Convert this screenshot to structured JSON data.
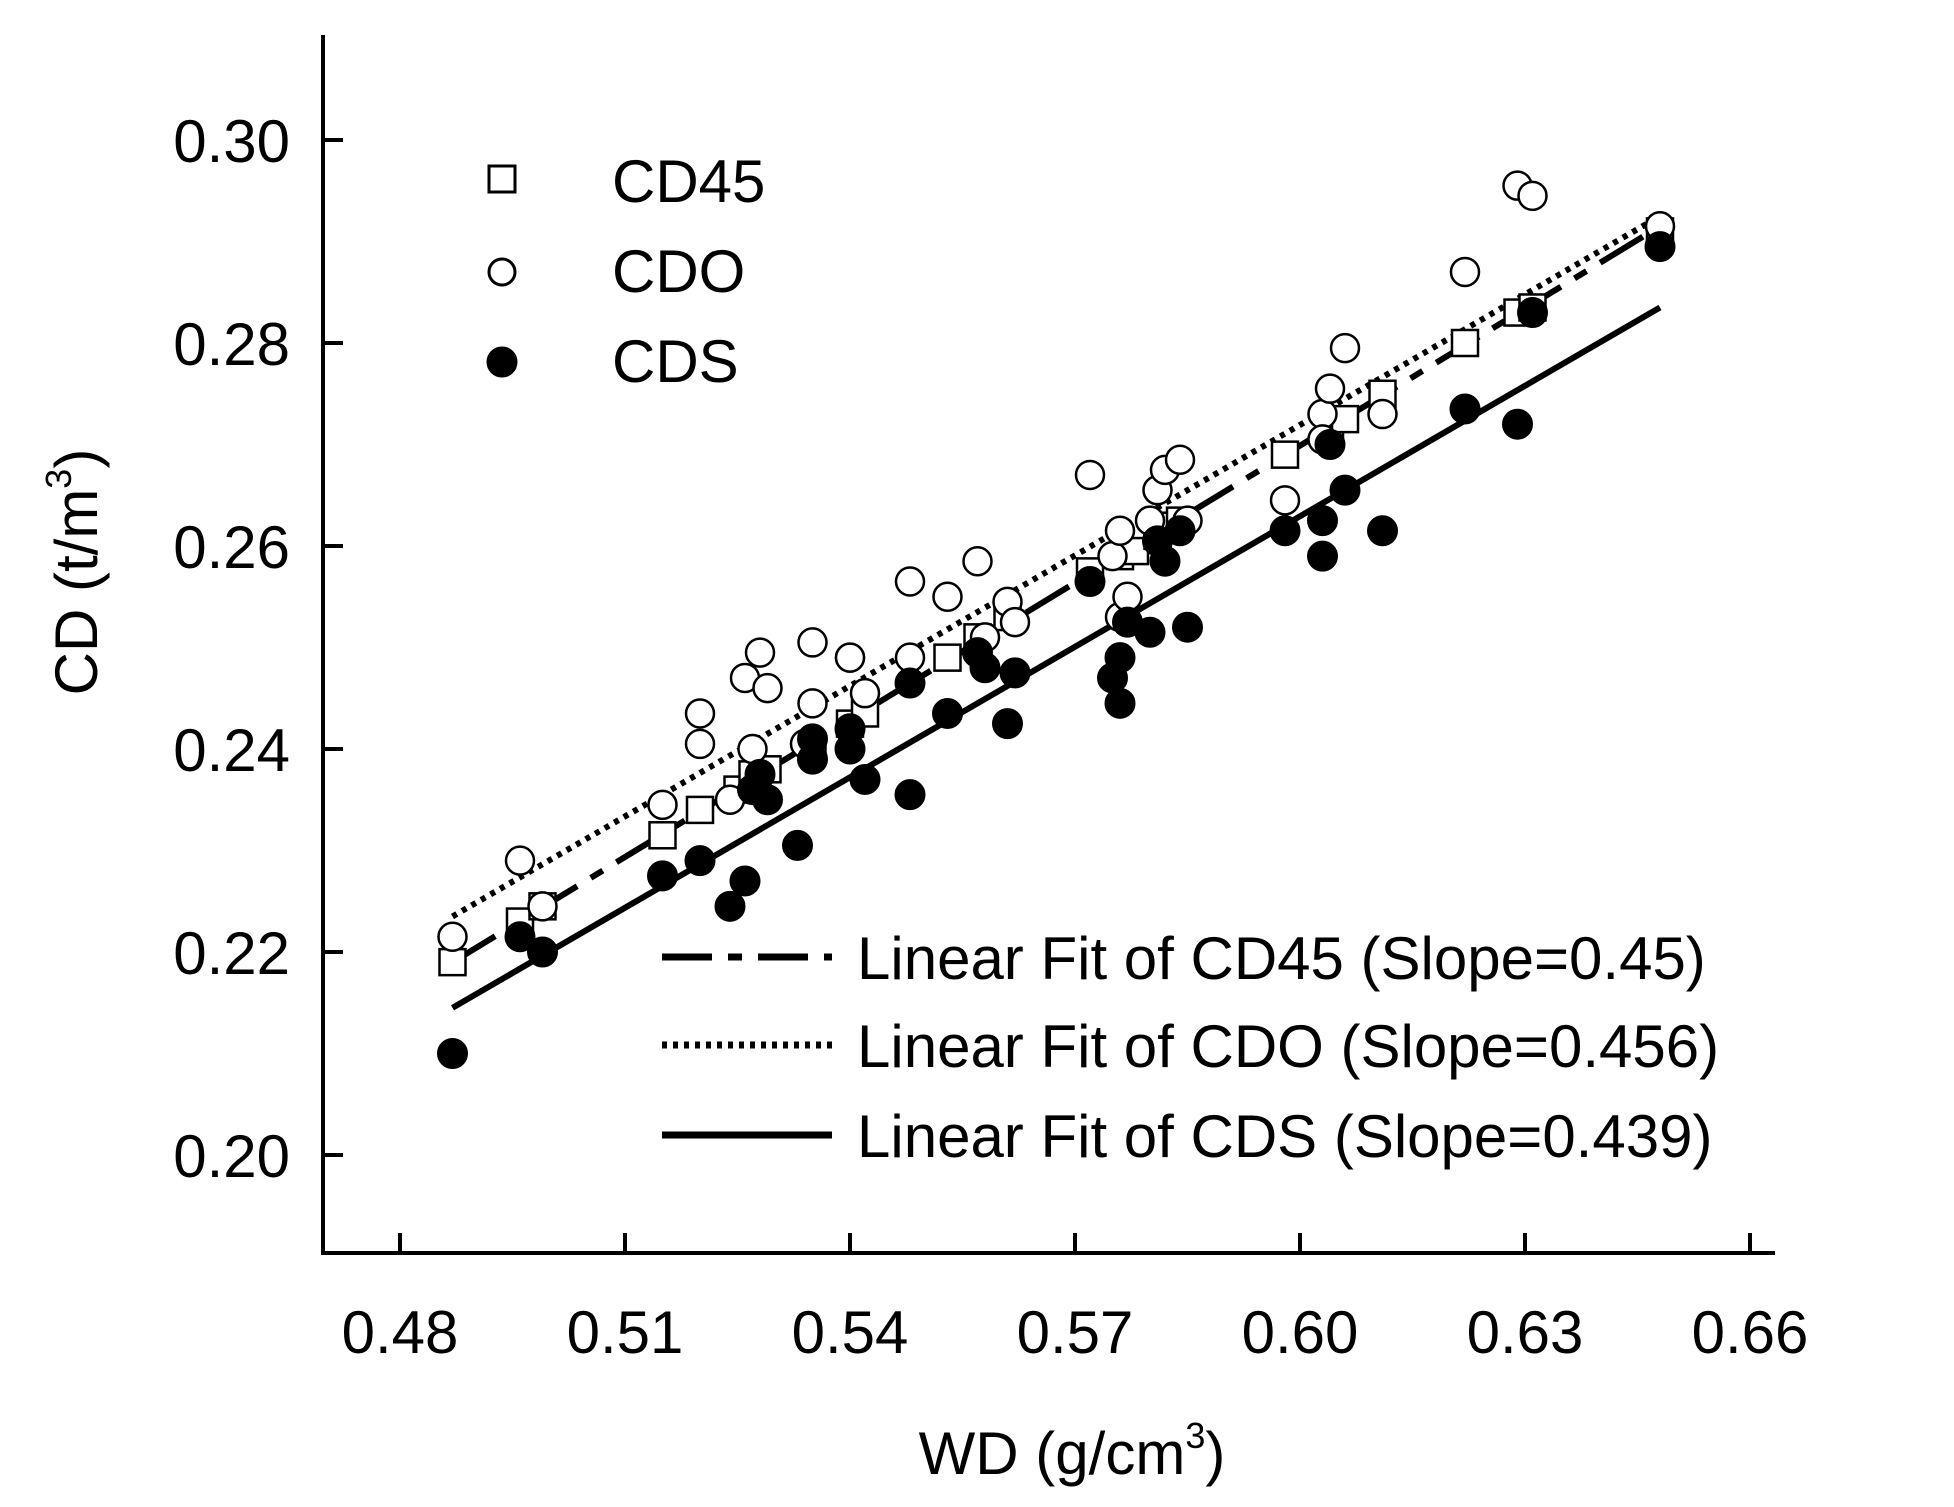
{
  "chart_data": {
    "type": "scatter",
    "xlabel": "WD (g/cm",
    "xlabel_sup": "3",
    "xlabel_end": ")",
    "ylabel": "CD (t/m",
    "ylabel_sup": "3",
    "ylabel_end": ")",
    "xlim": [
      0.47,
      0.66
    ],
    "ylim": [
      0.19,
      0.31
    ],
    "xticks": [
      0.48,
      0.51,
      0.54,
      0.57,
      0.6,
      0.63,
      0.66
    ],
    "xtick_labels": [
      "0.48",
      "0.51",
      "0.54",
      "0.57",
      "0.60",
      "0.63",
      "0.66"
    ],
    "yticks": [
      0.2,
      0.22,
      0.24,
      0.26,
      0.28,
      0.3
    ],
    "ytick_labels": [
      "0.20",
      "0.22",
      "0.24",
      "0.26",
      "0.28",
      "0.30"
    ],
    "legend": {
      "placement": "top-left",
      "entries": [
        {
          "name": "CD45",
          "marker": "square-open"
        },
        {
          "name": "CDO",
          "marker": "circle-open"
        },
        {
          "name": "CDS",
          "marker": "circle-filled"
        }
      ]
    },
    "fit_legend": {
      "placement": "bottom-right",
      "entries": [
        {
          "label": "Linear Fit of CD45 (Slope=0.45)",
          "style": "dash-dot"
        },
        {
          "label": "Linear Fit of CDO (Slope=0.456)",
          "style": "dotted"
        },
        {
          "label": "Linear Fit of CDS (Slope=0.439)",
          "style": "solid"
        }
      ]
    },
    "fits": [
      {
        "name": "CD45",
        "style": "dash-dot",
        "x": [
          0.487,
          0.648
        ],
        "y": [
          0.219,
          0.2915
        ]
      },
      {
        "name": "CDO",
        "style": "dotted",
        "x": [
          0.487,
          0.648
        ],
        "y": [
          0.2235,
          0.2925
        ]
      },
      {
        "name": "CDS",
        "style": "solid",
        "x": [
          0.487,
          0.648
        ],
        "y": [
          0.2145,
          0.2835
        ]
      }
    ],
    "series": [
      {
        "name": "CD45",
        "marker": "square-open",
        "points": [
          [
            0.487,
            0.219
          ],
          [
            0.496,
            0.223
          ],
          [
            0.499,
            0.2245
          ],
          [
            0.515,
            0.2315
          ],
          [
            0.52,
            0.234
          ],
          [
            0.525,
            0.236
          ],
          [
            0.527,
            0.2375
          ],
          [
            0.529,
            0.238
          ],
          [
            0.535,
            0.24
          ],
          [
            0.54,
            0.2425
          ],
          [
            0.542,
            0.2435
          ],
          [
            0.553,
            0.249
          ],
          [
            0.557,
            0.251
          ],
          [
            0.561,
            0.253
          ],
          [
            0.572,
            0.2575
          ],
          [
            0.576,
            0.259
          ],
          [
            0.578,
            0.2595
          ],
          [
            0.581,
            0.261
          ],
          [
            0.582,
            0.262
          ],
          [
            0.584,
            0.2625
          ],
          [
            0.598,
            0.269
          ],
          [
            0.604,
            0.271
          ],
          [
            0.606,
            0.2725
          ],
          [
            0.611,
            0.275
          ],
          [
            0.622,
            0.28
          ],
          [
            0.629,
            0.283
          ],
          [
            0.631,
            0.2835
          ],
          [
            0.648,
            0.291
          ]
        ]
      },
      {
        "name": "CDO",
        "marker": "circle-open",
        "points": [
          [
            0.487,
            0.2215
          ],
          [
            0.496,
            0.229
          ],
          [
            0.499,
            0.2245
          ],
          [
            0.515,
            0.2345
          ],
          [
            0.52,
            0.2435
          ],
          [
            0.52,
            0.2405
          ],
          [
            0.524,
            0.235
          ],
          [
            0.526,
            0.247
          ],
          [
            0.527,
            0.24
          ],
          [
            0.528,
            0.2495
          ],
          [
            0.529,
            0.246
          ],
          [
            0.534,
            0.2405
          ],
          [
            0.535,
            0.2505
          ],
          [
            0.535,
            0.2445
          ],
          [
            0.54,
            0.249
          ],
          [
            0.54,
            0.249
          ],
          [
            0.542,
            0.2455
          ],
          [
            0.548,
            0.249
          ],
          [
            0.548,
            0.2565
          ],
          [
            0.553,
            0.255
          ],
          [
            0.557,
            0.2585
          ],
          [
            0.558,
            0.251
          ],
          [
            0.561,
            0.2545
          ],
          [
            0.562,
            0.2525
          ],
          [
            0.572,
            0.267
          ],
          [
            0.575,
            0.259
          ],
          [
            0.576,
            0.2615
          ],
          [
            0.576,
            0.253
          ],
          [
            0.577,
            0.255
          ],
          [
            0.58,
            0.2625
          ],
          [
            0.581,
            0.2655
          ],
          [
            0.582,
            0.2675
          ],
          [
            0.584,
            0.2685
          ],
          [
            0.585,
            0.2625
          ],
          [
            0.598,
            0.2645
          ],
          [
            0.603,
            0.273
          ],
          [
            0.603,
            0.2705
          ],
          [
            0.604,
            0.2755
          ],
          [
            0.606,
            0.2795
          ],
          [
            0.611,
            0.273
          ],
          [
            0.622,
            0.287
          ],
          [
            0.629,
            0.2955
          ],
          [
            0.631,
            0.2945
          ],
          [
            0.648,
            0.2915
          ]
        ]
      },
      {
        "name": "CDS",
        "marker": "circle-filled",
        "points": [
          [
            0.487,
            0.21
          ],
          [
            0.496,
            0.2215
          ],
          [
            0.499,
            0.22
          ],
          [
            0.515,
            0.2275
          ],
          [
            0.52,
            0.229
          ],
          [
            0.524,
            0.2245
          ],
          [
            0.526,
            0.227
          ],
          [
            0.527,
            0.236
          ],
          [
            0.528,
            0.2375
          ],
          [
            0.529,
            0.235
          ],
          [
            0.533,
            0.2305
          ],
          [
            0.535,
            0.239
          ],
          [
            0.535,
            0.241
          ],
          [
            0.54,
            0.24
          ],
          [
            0.54,
            0.242
          ],
          [
            0.542,
            0.237
          ],
          [
            0.548,
            0.2465
          ],
          [
            0.548,
            0.2355
          ],
          [
            0.553,
            0.2435
          ],
          [
            0.557,
            0.2495
          ],
          [
            0.558,
            0.248
          ],
          [
            0.561,
            0.2425
          ],
          [
            0.562,
            0.2475
          ],
          [
            0.572,
            0.2565
          ],
          [
            0.575,
            0.247
          ],
          [
            0.576,
            0.249
          ],
          [
            0.576,
            0.2445
          ],
          [
            0.577,
            0.2525
          ],
          [
            0.58,
            0.2515
          ],
          [
            0.581,
            0.2605
          ],
          [
            0.582,
            0.2585
          ],
          [
            0.584,
            0.2615
          ],
          [
            0.585,
            0.252
          ],
          [
            0.598,
            0.2615
          ],
          [
            0.603,
            0.2625
          ],
          [
            0.603,
            0.259
          ],
          [
            0.604,
            0.27
          ],
          [
            0.606,
            0.2655
          ],
          [
            0.611,
            0.2615
          ],
          [
            0.622,
            0.2735
          ],
          [
            0.629,
            0.272
          ],
          [
            0.631,
            0.283
          ],
          [
            0.648,
            0.2895
          ]
        ]
      }
    ]
  }
}
